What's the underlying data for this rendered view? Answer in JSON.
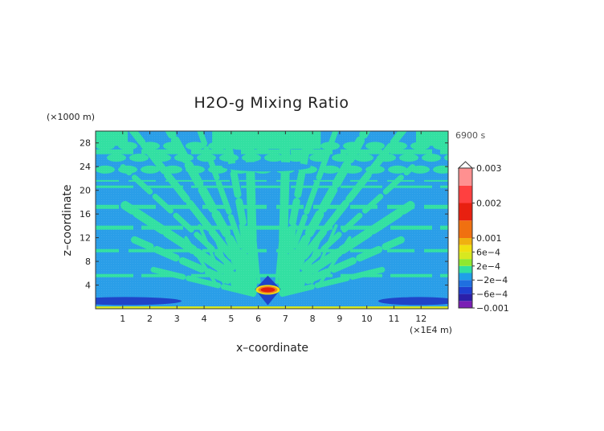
{
  "chart_data": {
    "type": "heatmap",
    "title": "H2O-g Mixing Ratio",
    "xlabel": "x–coordinate",
    "ylabel": "z–coordinate",
    "x_unit": "(×1E4 m)",
    "y_unit": "(×1000 m)",
    "time_label": "6900 s",
    "xlim": [
      0,
      13
    ],
    "ylim": [
      0,
      30
    ],
    "x_ticks": [
      1,
      2,
      3,
      4,
      5,
      6,
      7,
      8,
      9,
      10,
      11,
      12
    ],
    "x_tick_labels": [
      "1",
      "2",
      "3",
      "4",
      "5",
      "6",
      "7",
      "8",
      "9",
      "10",
      "11",
      "12"
    ],
    "y_ticks": [
      4,
      8,
      12,
      16,
      20,
      24,
      28
    ],
    "y_tick_labels": [
      "4",
      "8",
      "12",
      "16",
      "20",
      "24",
      "28"
    ],
    "colorbar": {
      "levels": [
        -0.001,
        -0.0008,
        -0.0006,
        -0.0004,
        -0.0002,
        0,
        0.0002,
        0.0004,
        0.0006,
        0.0008,
        0.001,
        0.0015,
        0.002,
        0.0025,
        0.003
      ],
      "colors": [
        "#7a1fb4",
        "#2b1fa8",
        "#1f3fd0",
        "#1f6fe0",
        "#1f9fe8",
        "#30e0a0",
        "#8fe830",
        "#d8e820",
        "#f0e010",
        "#f0b010",
        "#f07010",
        "#e82010",
        "#ff4040",
        "#ff9090",
        "#ffc0c0"
      ],
      "tick_labels": [
        "0.003",
        "0.002",
        "0.001",
        "6e−4",
        "2e−4",
        "−2e−4",
        "−6e−4",
        "−0.001"
      ],
      "tick_values": [
        0.003,
        0.002,
        0.001,
        0.0006,
        0.0002,
        -0.0002,
        -0.0006,
        -0.001
      ]
    },
    "field_colors": {
      "background_negative": "#2a9ee8",
      "positive_band": "#33e0a2",
      "strong_negative": "#1f44c8",
      "core_high": "#e02010",
      "core_mid": "#f08020",
      "core_low": "#f0e010",
      "surface_positive": "#d8e820"
    }
  }
}
